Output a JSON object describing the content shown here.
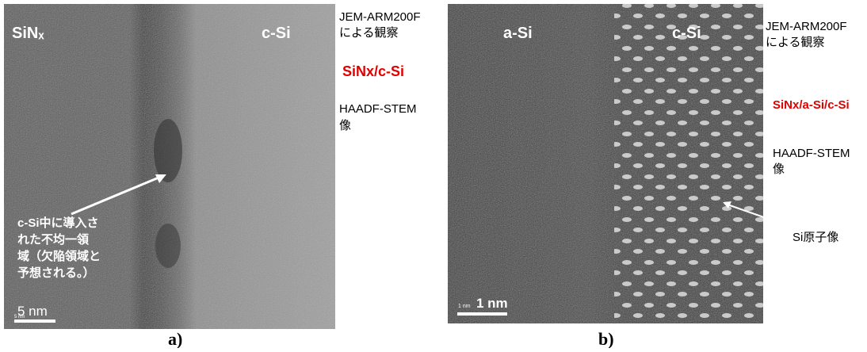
{
  "panel_a": {
    "label_left": "SiNₓ",
    "label_right": "c-Si",
    "note_lines": [
      "JEM-ARM200F",
      "による観察"
    ],
    "sample": "SiNx/c-Si",
    "method_lines": [
      "HAADF-STEM",
      "像"
    ],
    "annotation_lines": [
      "c-Si中に導入さ",
      "れた不均一領",
      "域（欠陥領域と",
      "予想される。）"
    ],
    "scale_small": "5 nm",
    "scale": "5 nm",
    "caption": "a)"
  },
  "panel_b": {
    "label_left": "a-Si",
    "label_right": "c-Si",
    "note_lines": [
      "JEM-ARM200F",
      "による観察"
    ],
    "sample": "SiNx/a-Si/c-Si",
    "method_lines": [
      "HAADF-STEM",
      "像"
    ],
    "annotation": "Si原子像",
    "scale_small": "1 nm",
    "scale": "1 nm",
    "caption": "b)"
  }
}
